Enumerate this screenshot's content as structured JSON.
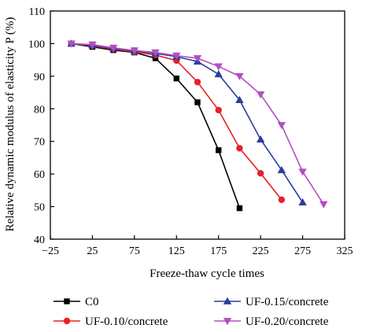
{
  "chart_data": {
    "type": "line",
    "xlabel": "Freeze-thaw cycle times",
    "ylabel": "Relative dynamic modulus of elasticity P (%)",
    "xlim": [
      -25,
      325
    ],
    "ylim": [
      40,
      110
    ],
    "xticks": [
      -25,
      25,
      75,
      125,
      175,
      225,
      275,
      325
    ],
    "xtick_labels": [
      "−25",
      "25",
      "75",
      "125",
      "175",
      "225",
      "275",
      "325"
    ],
    "yticks": [
      40,
      50,
      60,
      70,
      80,
      90,
      100,
      110
    ],
    "ytick_labels": [
      "40",
      "50",
      "60",
      "70",
      "80",
      "90",
      "100",
      "110"
    ],
    "grid": false,
    "legend_position": "bottom",
    "series": [
      {
        "name": "C0",
        "color": "#000000",
        "marker": "square",
        "x": [
          0,
          25,
          50,
          75,
          100,
          125,
          150,
          175,
          200
        ],
        "y": [
          100,
          99,
          98,
          97.3,
          95.5,
          89.3,
          82,
          67.3,
          49.5
        ]
      },
      {
        "name": "UF-0.10/concrete",
        "color": "#e8202a",
        "marker": "circle",
        "x": [
          0,
          25,
          50,
          75,
          100,
          125,
          150,
          175,
          200,
          225,
          250
        ],
        "y": [
          100,
          99.3,
          98.3,
          97.5,
          96.5,
          94.8,
          88.2,
          79.6,
          67.9,
          60.2,
          52.1
        ]
      },
      {
        "name": "UF-0.15/concrete",
        "color": "#2a3d9c",
        "marker": "triangle-up",
        "x": [
          0,
          25,
          50,
          75,
          100,
          125,
          150,
          175,
          200,
          225,
          250,
          275
        ],
        "y": [
          100,
          99.5,
          98.5,
          97.8,
          97,
          96,
          94.5,
          90.6,
          82.7,
          70.6,
          61.2,
          51.3
        ]
      },
      {
        "name": "UF-0.20/concrete",
        "color": "#b050c0",
        "marker": "triangle-down",
        "x": [
          0,
          25,
          50,
          75,
          100,
          125,
          150,
          175,
          200,
          225,
          250,
          275,
          300
        ],
        "y": [
          100,
          99.7,
          98.7,
          97.9,
          97.3,
          96.3,
          95.5,
          93,
          90,
          84.4,
          75,
          60.7,
          50.7
        ]
      }
    ]
  }
}
